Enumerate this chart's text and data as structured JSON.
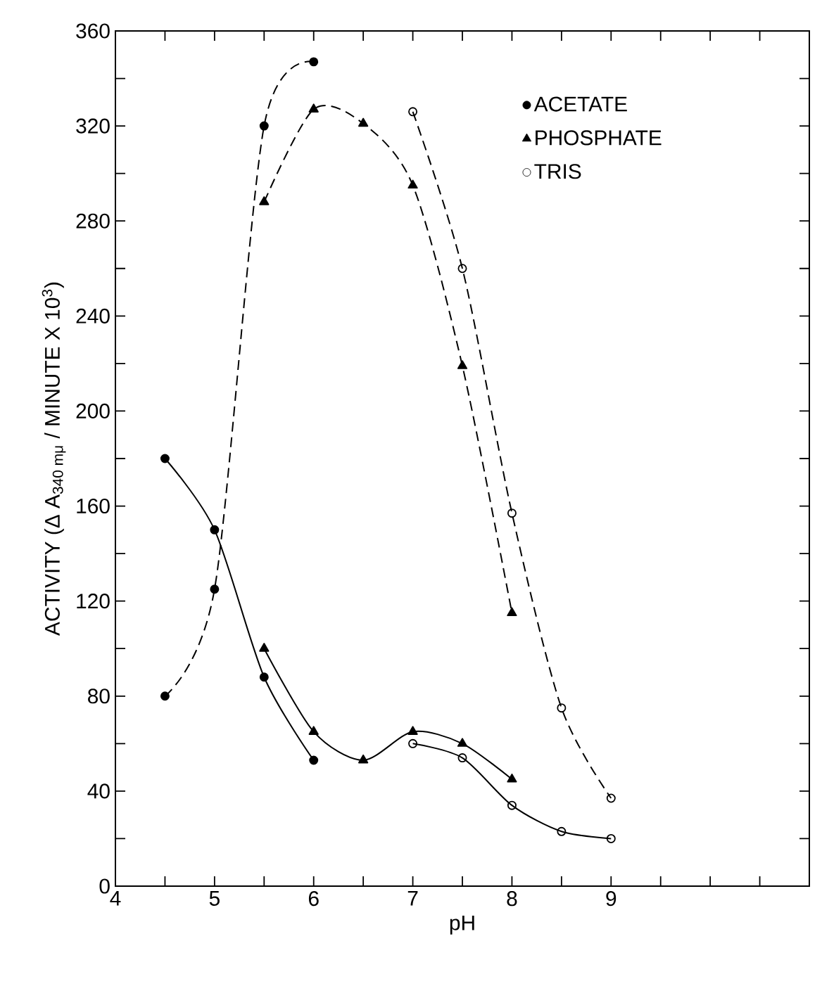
{
  "chart_data": {
    "type": "line",
    "xlabel": "pH",
    "ylabel": "ACTIVITY (Δ A$_{340 mμ}$ / MINUTE X 10$^{3}$)",
    "xlim": [
      4,
      11
    ],
    "ylim": [
      0,
      360
    ],
    "xticks": [
      4,
      {
        "value": 4.5,
        "label": null
      },
      5,
      {
        "value": 5.5,
        "label": null
      },
      6,
      {
        "value": 6.5,
        "label": null
      },
      7,
      {
        "value": 7.5,
        "label": null
      },
      8,
      {
        "value": 8.5,
        "label": null
      },
      9,
      {
        "value": 9.5,
        "label": null
      },
      {
        "value": 10,
        "label": null
      },
      {
        "value": 10.5,
        "label": null
      }
    ],
    "yticks": [
      0,
      {
        "value": 20,
        "label": null
      },
      40,
      {
        "value": 60,
        "label": null
      },
      80,
      {
        "value": 100,
        "label": null
      },
      120,
      {
        "value": 140,
        "label": null
      },
      160,
      {
        "value": 180,
        "label": null
      },
      200,
      {
        "value": 220,
        "label": null
      },
      240,
      {
        "value": 260,
        "label": null
      },
      280,
      {
        "value": 300,
        "label": null
      },
      320,
      {
        "value": 340,
        "label": null
      },
      360
    ],
    "legend": "top right",
    "grid": false,
    "series": [
      {
        "name": "ACETATE",
        "color": "#000000",
        "marker": "circle",
        "line_style": "dashed",
        "x": [
          4.5,
          5,
          5.5,
          6
        ],
        "values": [
          80,
          125,
          320,
          347
        ]
      },
      {
        "name": "PHOSPHATE",
        "color": "#000000",
        "marker": "triangle",
        "line_style": "dashed",
        "x": [
          5.5,
          6,
          6.5,
          7,
          7.5,
          8
        ],
        "values": [
          288,
          327,
          321,
          295,
          219,
          115
        ]
      },
      {
        "name": "TRIS",
        "color": "#000000",
        "marker": "circle",
        "line_style": "dashed",
        "x": [
          7,
          7.5,
          8,
          8.5,
          9
        ],
        "values": [
          326,
          260,
          157,
          75,
          37
        ]
      },
      {
        "color": "#000000",
        "marker": "circle",
        "line_style": "solid",
        "x": [
          4.5,
          5,
          5.5,
          6
        ],
        "values": [
          180,
          150,
          88,
          53
        ]
      },
      {
        "color": "#000000",
        "marker": "triangle",
        "line_style": "solid",
        "x": [
          5.5,
          6,
          6.5,
          7,
          7.5,
          8
        ],
        "values": [
          100,
          65,
          53,
          65,
          60,
          45
        ]
      },
      {
        "color": "#000000",
        "marker": "circle",
        "line_style": "solid",
        "x": [
          7,
          7.5,
          8,
          8.5,
          9
        ],
        "values": [
          60,
          54,
          34,
          23,
          20
        ]
      }
    ]
  }
}
